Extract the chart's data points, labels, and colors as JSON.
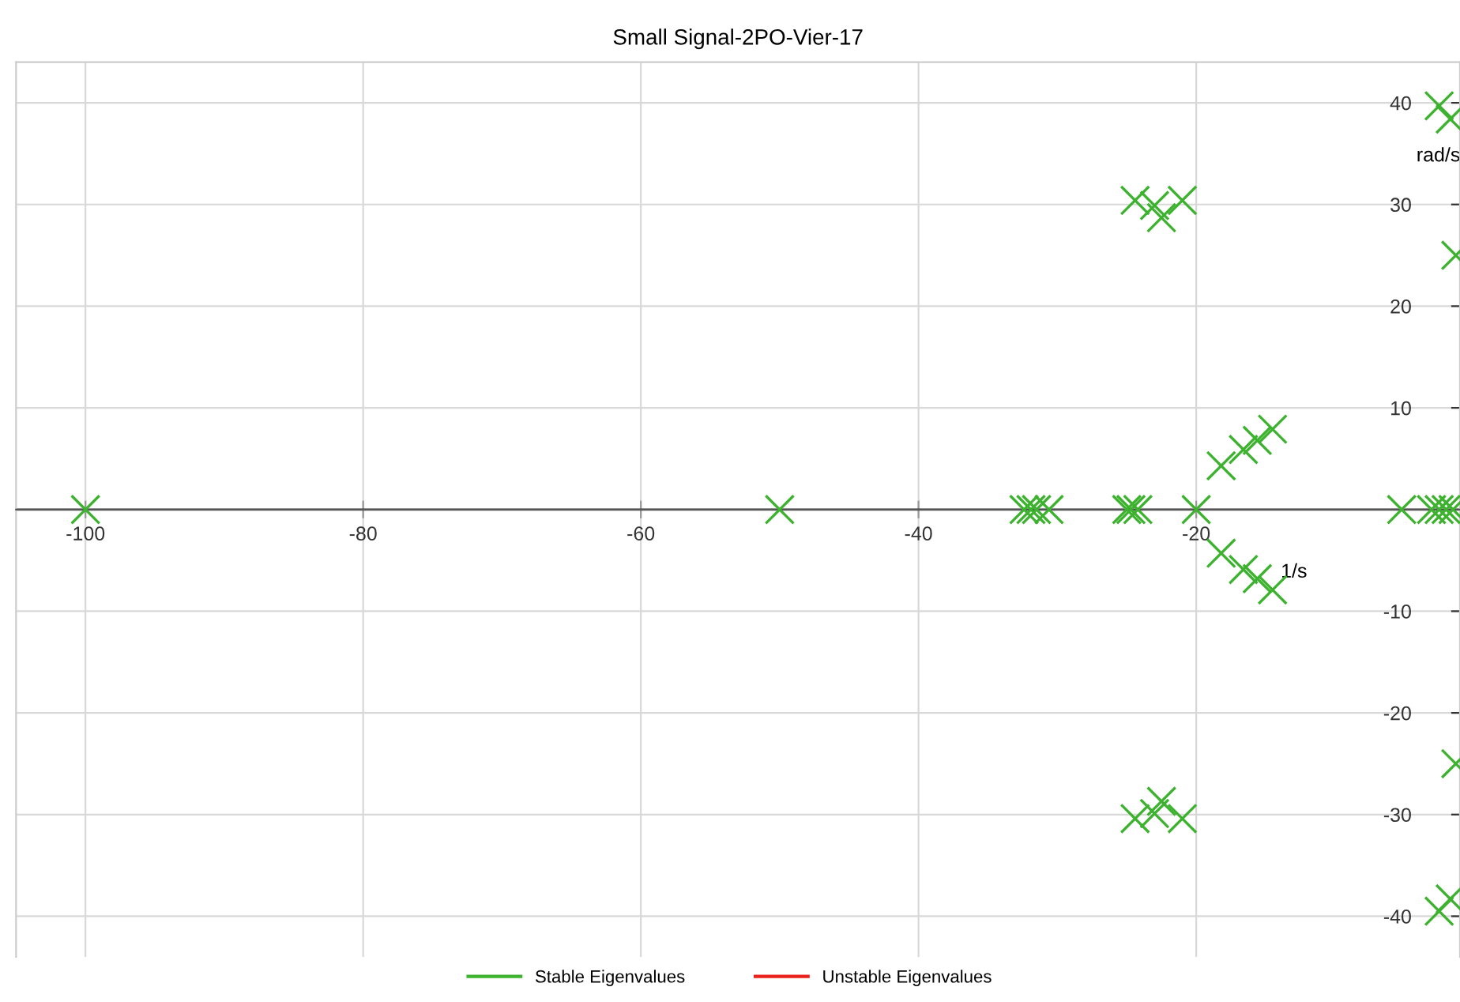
{
  "chart_data": {
    "type": "scatter",
    "title": "Small Signal-2PO-Vier-17",
    "xlabel": "1/s",
    "ylabel": "rad/s",
    "xlim": [
      -105,
      -1.0
    ],
    "ylim": [
      -44,
      44
    ],
    "xticks": [
      -100,
      -80,
      -60,
      -40,
      -20
    ],
    "yticks": [
      -40,
      -30,
      -20,
      -10,
      10,
      20,
      30,
      40
    ],
    "grid": true,
    "legend": "bottom",
    "marker": "cross",
    "series": [
      {
        "name": "Stable Eigenvalues",
        "color": "#3cb22f",
        "x": [
          -100,
          -50,
          -32.4,
          -31.9,
          -31.5,
          -30.6,
          -25.0,
          -24.7,
          -24.2,
          -20,
          -5.2,
          -3.05,
          -2.5,
          -2.0,
          -1.5,
          -24.4,
          -23.0,
          -22.5,
          -21.0,
          -24.4,
          -23.0,
          -22.5,
          -21.0,
          -18.2,
          -16.6,
          -15.6,
          -14.5,
          -18.2,
          -16.6,
          -15.6,
          -14.5,
          -2.5,
          -1.7,
          -1.3,
          -1.3,
          -2.5,
          -1.7
        ],
        "values": [
          0,
          0,
          0,
          0,
          0,
          0,
          0,
          0,
          0,
          0,
          0,
          0,
          0,
          0,
          0,
          30.4,
          29.9,
          28.7,
          30.4,
          -30.4,
          -29.9,
          -28.7,
          -30.4,
          4.3,
          5.9,
          6.8,
          7.9,
          -4.3,
          -5.9,
          -6.8,
          -7.9,
          39.7,
          38.4,
          25,
          -25,
          -39.5,
          -38.3
        ]
      },
      {
        "name": "Unstable Eigenvalues",
        "color": "#e8211c"
      }
    ]
  }
}
